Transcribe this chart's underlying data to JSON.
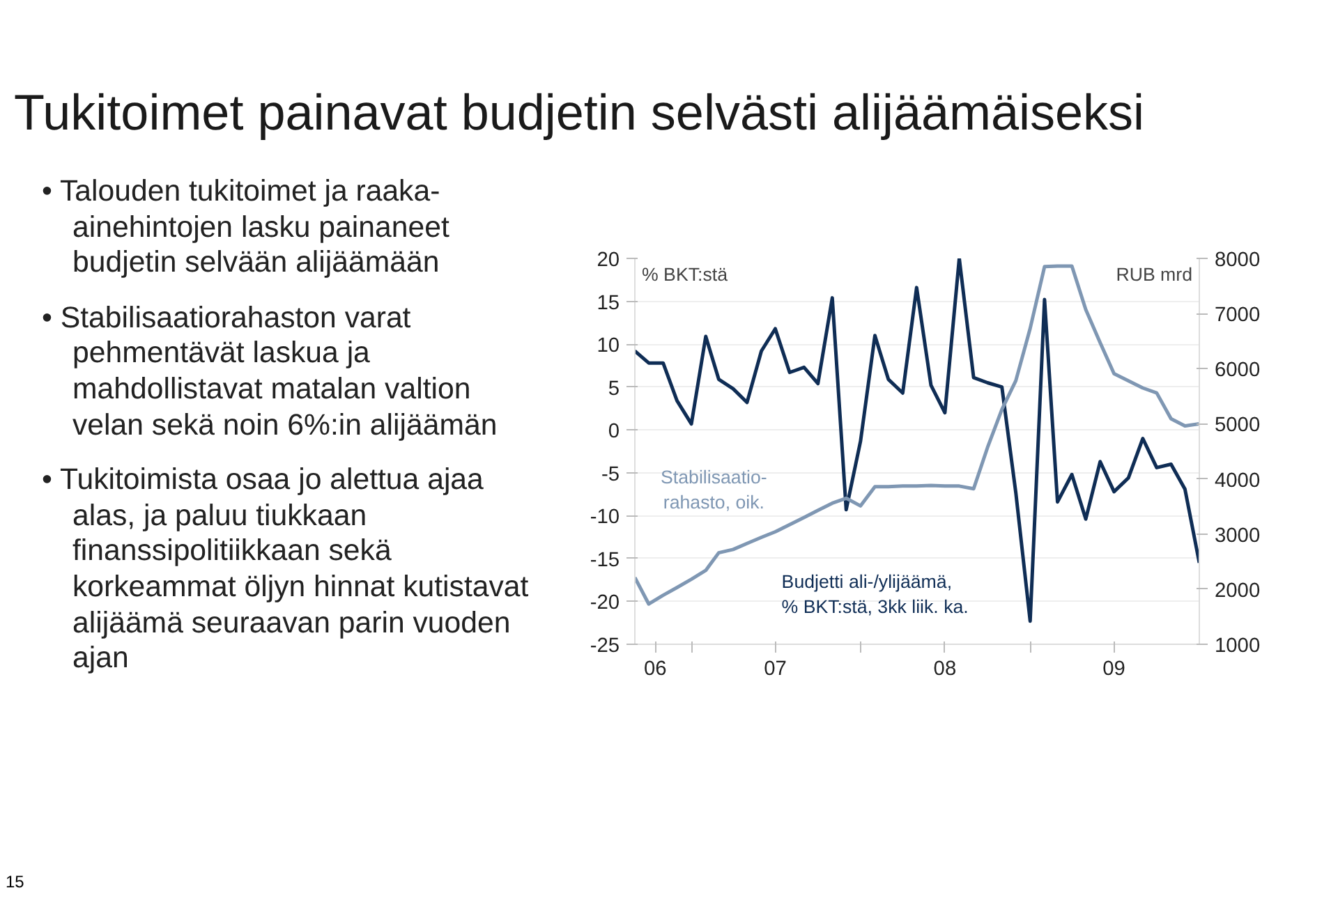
{
  "chart_data": {
    "type": "line",
    "title": "Tukitoimet painavat budjetin selvästi alijäämäiseksi",
    "annotations": [
      "• Talouden tukitoimet ja raaka-ainehintojen lasku painaneet budjetin selvään alijäämään",
      "• Stabilisaatiorahaston varat pehmentävät laskua ja mahdollistavat matalan valtion velan sekä noin 6%:in alijäämän",
      "• Tukitoimista osaa jo alettua ajaa alas, ja paluu tiukkaan finanssipolitiikkaan sekä korkeammat öljyn hinnat kutistavat alijäämä seuraavan parin vuoden ajan",
      "15"
    ],
    "ylabel": "% BKT:stä",
    "y2label": "RUB mrd",
    "x": [
      "2006-09",
      "2006-10",
      "2006-11",
      "2006-12",
      "2007-01",
      "2007-02",
      "2007-03",
      "2007-04",
      "2007-05",
      "2007-06",
      "2007-07",
      "2007-08",
      "2007-09",
      "2007-10",
      "2007-11",
      "2007-12",
      "2008-01",
      "2008-02",
      "2008-03",
      "2008-04",
      "2008-05",
      "2008-06",
      "2008-07",
      "2008-08",
      "2008-09",
      "2008-10",
      "2008-11",
      "2008-12",
      "2009-01",
      "2009-02",
      "2009-03",
      "2009-04",
      "2009-05",
      "2009-06",
      "2009-07",
      "2009-08",
      "2009-09",
      "2009-10",
      "2009-11",
      "2009-12",
      "2010-01"
    ],
    "series": [
      {
        "name": "Budjetti ali-/ylijäämä,\n% BKT:stä, 3kk liik. ka.",
        "color": "#0f2d55",
        "values": [
          9.2,
          7.8,
          7.8,
          3.4,
          0.7,
          10.9,
          5.9,
          4.8,
          3.2,
          9.2,
          11.8,
          6.7,
          7.3,
          5.4,
          15.4,
          -9.3,
          -1.3,
          11.0,
          5.9,
          4.3,
          16.6,
          5.2,
          2.0,
          20.0,
          6.1,
          5.5,
          5.0,
          -7.3,
          -22.3,
          15.2,
          -8.4,
          -5.2,
          -10.4,
          -3.7,
          -7.2,
          -5.6,
          -1.0,
          -4.4,
          -4.0,
          -6.9,
          -15.5
        ]
      },
      {
        "name": "Stabilisaatio-\nrahasto, oik.",
        "color": "#7f97b3",
        "axis": "y2",
        "values": [
          2210,
          1730,
          1890,
          2030,
          2180,
          2340,
          2660,
          2720,
          2830,
          2940,
          3040,
          3170,
          3300,
          3430,
          3560,
          3650,
          3510,
          3860,
          3860,
          3870,
          3870,
          3880,
          3870,
          3870,
          3820,
          4570,
          5260,
          5780,
          6730,
          7850,
          7860,
          7860,
          7070,
          6470,
          5910,
          5780,
          5650,
          5560,
          5090,
          4960,
          5000
        ]
      }
    ],
    "xlim": [
      "2006-09",
      "2010-01"
    ],
    "xticks": [
      {
        "value": "2007-01",
        "label": null
      },
      {
        "value": "2008-01",
        "label": null
      },
      {
        "value": "2009-01",
        "label": null
      },
      {
        "value": "2006-10-15",
        "label": "06"
      },
      {
        "value": "2007-07",
        "label": "07"
      },
      {
        "value": "2008-07",
        "label": "08"
      },
      {
        "value": "2009-07",
        "label": "09"
      }
    ],
    "ylim": [
      -25,
      20
    ],
    "yticks": [
      -25,
      -20,
      -15,
      -10,
      -5,
      0,
      5,
      10,
      15,
      20
    ],
    "y2lim": [
      1000,
      8000
    ],
    "y2ticks": [
      1000,
      2000,
      3000,
      4000,
      5000,
      6000,
      7000,
      8000
    ],
    "grid": "y",
    "line_style": "solid"
  }
}
